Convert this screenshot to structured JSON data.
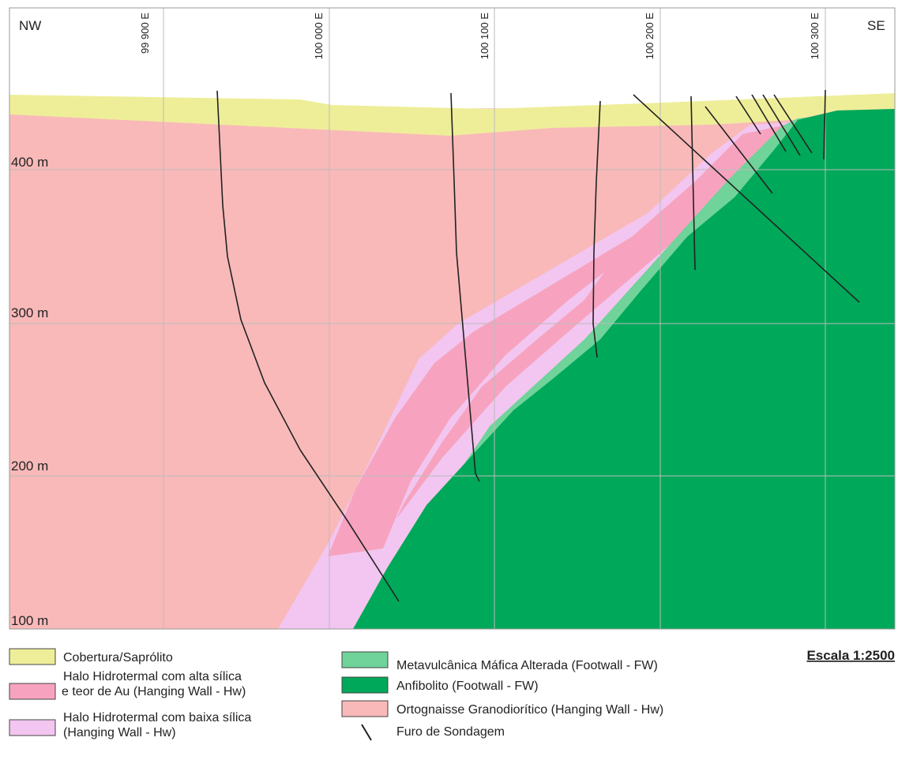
{
  "corners": {
    "left": "NW",
    "right": "SE"
  },
  "eastings": [
    "99 900 E",
    "100 000 E",
    "100 100 E",
    "100 200 E",
    "100 300 E"
  ],
  "elevations": [
    "400 m",
    "300 m",
    "200 m",
    "100 m"
  ],
  "legend": {
    "left": [
      {
        "lines": [
          "Cobertura/Saprólito"
        ]
      },
      {
        "lines": [
          "Halo Hidrotermal com alta sílica",
          "e teor de Au (Hanging Wall - Hw)"
        ]
      },
      {
        "lines": [
          "Halo Hidrotermal com baixa sílica",
          "(Hanging Wall - Hw)"
        ]
      }
    ],
    "right": [
      {
        "lines": [
          "Metavulcânica Máfica Alterada (Footwall - FW)"
        ]
      },
      {
        "lines": [
          "Anfibolito (Footwall - FW)"
        ]
      },
      {
        "lines": [
          "Ortognaisse Granodiorítico (Hanging Wall - Hw)"
        ]
      },
      {
        "lines": [
          "Furo de Sondagem"
        ]
      }
    ]
  },
  "scale": "Escala 1:2500"
}
